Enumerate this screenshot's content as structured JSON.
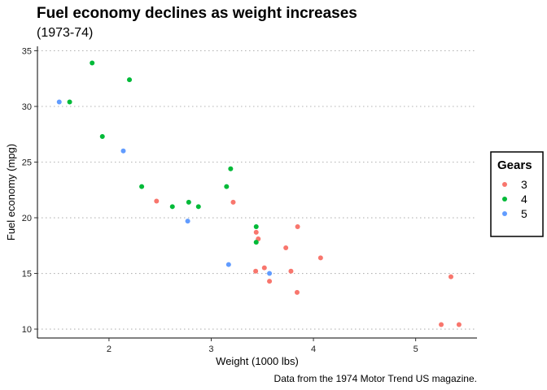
{
  "chart_data": {
    "type": "scatter",
    "title": "Fuel economy declines as weight increases",
    "subtitle": "(1973-74)",
    "xlabel": "Weight (1000 lbs)",
    "ylabel": "Fuel economy (mpg)",
    "caption": "Data from the 1974 Motor Trend US magazine.",
    "xlim": [
      1.3,
      5.6
    ],
    "ylim": [
      9.2,
      35.4
    ],
    "xticks": [
      2,
      3,
      4,
      5
    ],
    "yticks": [
      10,
      15,
      20,
      25,
      30,
      35
    ],
    "grid": "horizontal major, dotted",
    "legend": {
      "title": "Gears",
      "placement": "right",
      "entries": [
        {
          "label": "3",
          "color": "#F8766D"
        },
        {
          "label": "4",
          "color": "#00BA38"
        },
        {
          "label": "5",
          "color": "#619CFF"
        }
      ]
    },
    "series": [
      {
        "name": "3",
        "color": "#F8766D",
        "points": [
          [
            3.215,
            21.4
          ],
          [
            3.44,
            18.7
          ],
          [
            3.46,
            18.1
          ],
          [
            3.57,
            14.3
          ],
          [
            4.07,
            16.4
          ],
          [
            3.73,
            17.3
          ],
          [
            3.78,
            15.2
          ],
          [
            5.25,
            10.4
          ],
          [
            5.424,
            10.4
          ],
          [
            5.345,
            14.7
          ],
          [
            2.465,
            21.5
          ],
          [
            3.52,
            15.5
          ],
          [
            3.435,
            15.2
          ],
          [
            3.84,
            13.3
          ],
          [
            3.845,
            19.2
          ]
        ]
      },
      {
        "name": "4",
        "color": "#00BA38",
        "points": [
          [
            2.62,
            21.0
          ],
          [
            2.875,
            21.0
          ],
          [
            2.32,
            22.8
          ],
          [
            3.19,
            24.4
          ],
          [
            3.15,
            22.8
          ],
          [
            3.44,
            19.2
          ],
          [
            3.44,
            17.8
          ],
          [
            2.2,
            32.4
          ],
          [
            1.615,
            30.4
          ],
          [
            1.835,
            33.9
          ],
          [
            1.935,
            27.3
          ],
          [
            2.78,
            21.4
          ]
        ]
      },
      {
        "name": "5",
        "color": "#619CFF",
        "points": [
          [
            2.14,
            26.0
          ],
          [
            1.513,
            30.4
          ],
          [
            3.17,
            15.8
          ],
          [
            2.77,
            19.7
          ],
          [
            3.57,
            15.0
          ]
        ]
      }
    ]
  }
}
